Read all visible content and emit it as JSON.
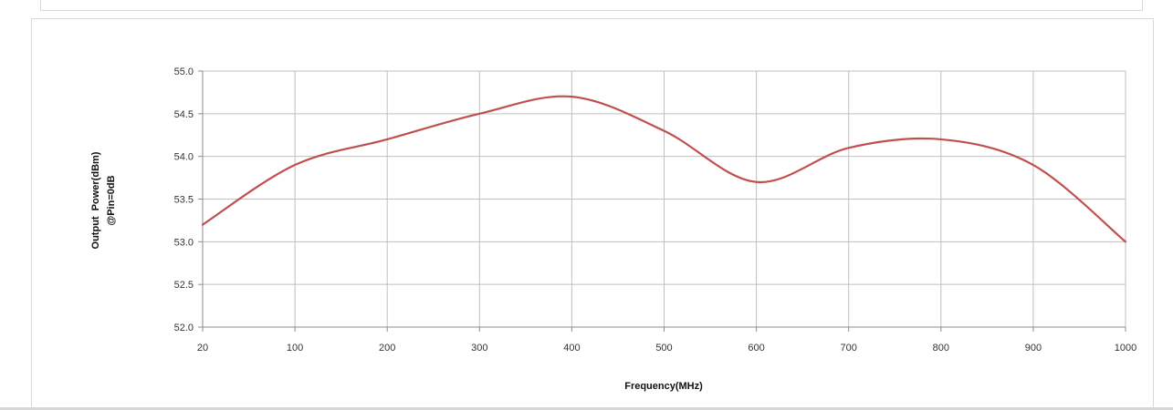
{
  "chart_data": {
    "type": "line",
    "title": "",
    "xlabel": "Frequency(MHz)",
    "ylabel_lines": [
      "Output  Power(dBm)",
      "@Pin=0dB"
    ],
    "x_categories": [
      "20",
      "100",
      "200",
      "300",
      "400",
      "500",
      "600",
      "700",
      "800",
      "900",
      "1000"
    ],
    "y_ticks": [
      "55.0",
      "54.5",
      "54.0",
      "53.5",
      "53.0",
      "52.5",
      "52.0"
    ],
    "ylim": [
      52.0,
      55.0
    ],
    "grid": true,
    "legend": "none",
    "series": [
      {
        "color": "#c0504d",
        "x": [
          "20",
          "100",
          "200",
          "300",
          "400",
          "500",
          "600",
          "700",
          "800",
          "900",
          "1000"
        ],
        "values": [
          53.2,
          53.9,
          54.2,
          54.5,
          54.7,
          54.3,
          53.7,
          54.1,
          54.2,
          53.9,
          53.0
        ]
      }
    ]
  }
}
